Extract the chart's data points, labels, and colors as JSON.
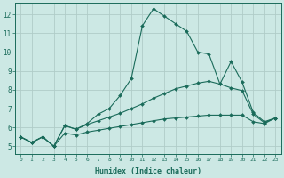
{
  "xlabel": "Humidex (Indice chaleur)",
  "ylabel": "",
  "background_color": "#cce8e4",
  "grid_color": "#b0ccc8",
  "line_color": "#1a6b5a",
  "xlim": [
    -0.5,
    23.5
  ],
  "ylim": [
    4.6,
    12.6
  ],
  "xticks": [
    0,
    1,
    2,
    3,
    4,
    5,
    6,
    7,
    8,
    9,
    10,
    11,
    12,
    13,
    14,
    15,
    16,
    17,
    18,
    19,
    20,
    21,
    22,
    23
  ],
  "yticks": [
    5,
    6,
    7,
    8,
    9,
    10,
    11,
    12
  ],
  "curve1_x": [
    0,
    1,
    2,
    3,
    4,
    5,
    6,
    7,
    8,
    9,
    10,
    11,
    12,
    13,
    14,
    15,
    16,
    17,
    18,
    19,
    20,
    21,
    22,
    23
  ],
  "curve1_y": [
    5.5,
    5.2,
    5.5,
    5.0,
    6.1,
    5.9,
    6.2,
    6.7,
    7.0,
    7.7,
    8.6,
    11.4,
    12.3,
    11.9,
    11.5,
    11.1,
    10.0,
    9.9,
    8.3,
    9.5,
    8.4,
    6.8,
    6.3,
    6.5
  ],
  "curve2_x": [
    0,
    1,
    2,
    3,
    4,
    5,
    6,
    7,
    8,
    9,
    10,
    11,
    12,
    13,
    14,
    15,
    16,
    17,
    18,
    19,
    20,
    21,
    22,
    23
  ],
  "curve2_y": [
    5.5,
    5.2,
    5.5,
    5.0,
    6.1,
    5.9,
    6.15,
    6.35,
    6.55,
    6.75,
    7.0,
    7.25,
    7.55,
    7.8,
    8.05,
    8.2,
    8.35,
    8.45,
    8.3,
    8.1,
    7.95,
    6.7,
    6.25,
    6.5
  ],
  "curve3_x": [
    0,
    1,
    2,
    3,
    4,
    5,
    6,
    7,
    8,
    9,
    10,
    11,
    12,
    13,
    14,
    15,
    16,
    17,
    18,
    19,
    20,
    21,
    22,
    23
  ],
  "curve3_y": [
    5.5,
    5.2,
    5.5,
    5.0,
    5.7,
    5.6,
    5.75,
    5.85,
    5.95,
    6.05,
    6.15,
    6.25,
    6.35,
    6.45,
    6.5,
    6.55,
    6.6,
    6.65,
    6.65,
    6.65,
    6.65,
    6.3,
    6.2,
    6.5
  ]
}
